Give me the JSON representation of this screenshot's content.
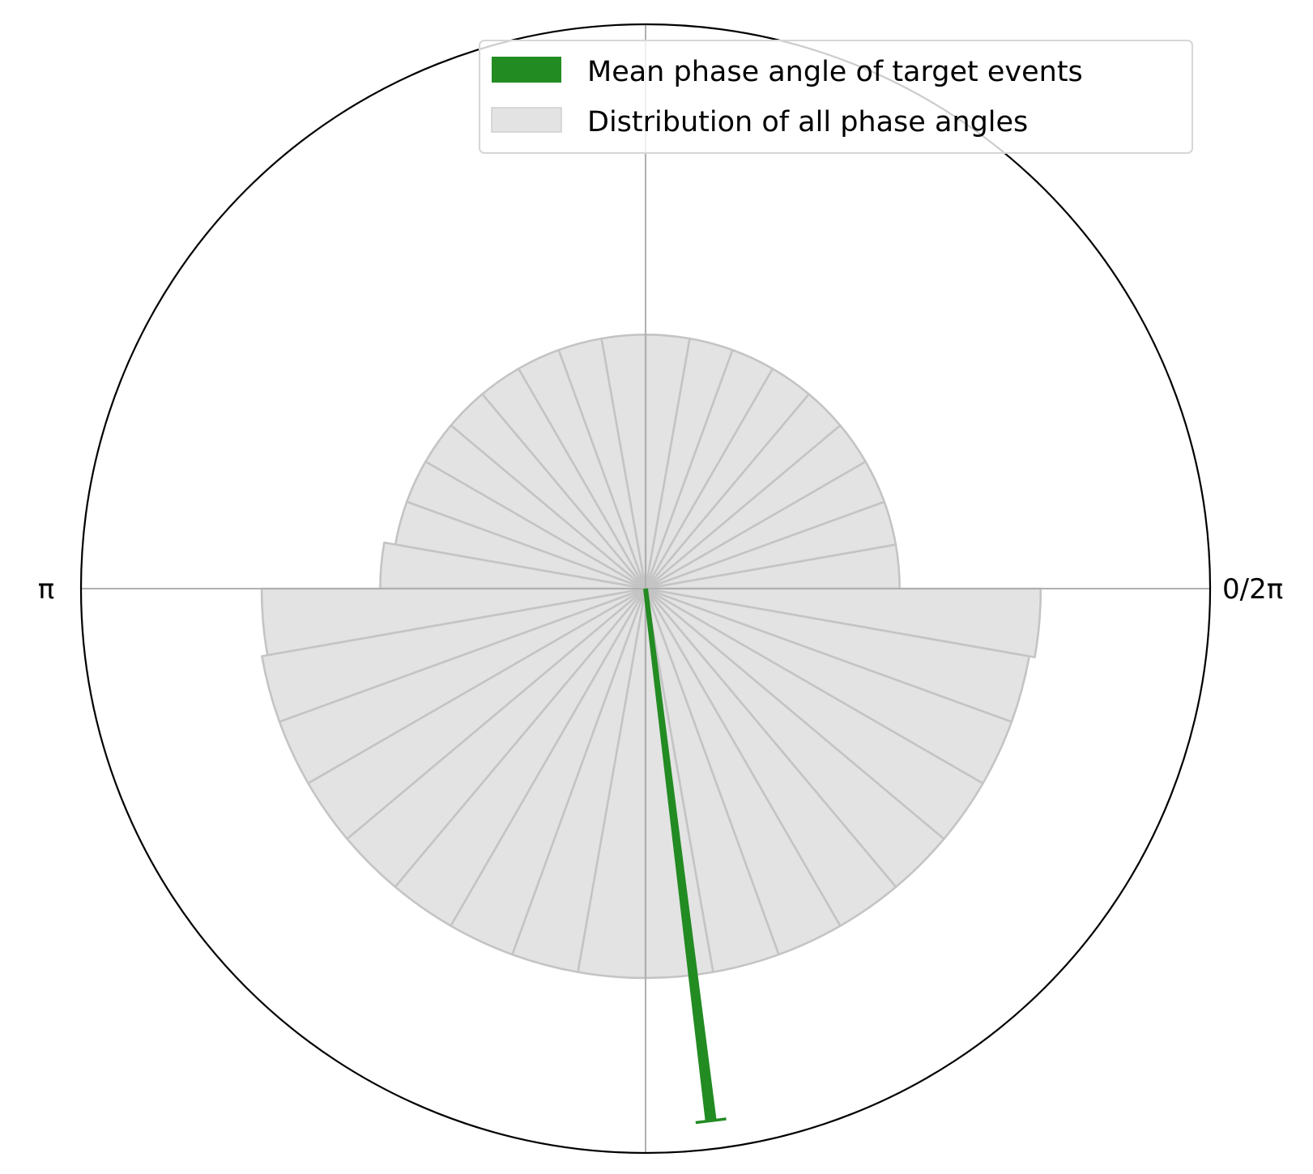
{
  "chart_data": {
    "type": "polar-bar",
    "angle_tick_labels": [
      {
        "angle_rad": 0,
        "label": "0/2π"
      },
      {
        "angle_rad": 3.14159265,
        "label": "π"
      }
    ],
    "grid": true,
    "rlim": [
      0,
      1.0
    ],
    "legend": {
      "placement": "top-right",
      "entries": [
        {
          "label": "Mean phase angle of target events",
          "color": "#228b22"
        },
        {
          "label": "Distribution of all phase angles",
          "color": "#e3e3e3"
        }
      ]
    },
    "histogram": {
      "name": "Distribution of all phase angles",
      "bin_width_deg": 10,
      "bin_centers_deg": [
        5,
        15,
        25,
        35,
        45,
        55,
        65,
        75,
        85,
        95,
        105,
        115,
        125,
        135,
        145,
        155,
        165,
        175,
        185,
        195,
        205,
        215,
        225,
        235,
        245,
        255,
        265,
        275,
        285,
        295,
        305,
        315,
        325,
        335,
        345,
        355
      ],
      "values": [
        0.45,
        0.45,
        0.45,
        0.45,
        0.45,
        0.45,
        0.45,
        0.45,
        0.45,
        0.45,
        0.45,
        0.45,
        0.45,
        0.45,
        0.45,
        0.45,
        0.45,
        0.47,
        0.68,
        0.69,
        0.69,
        0.69,
        0.69,
        0.69,
        0.69,
        0.69,
        0.69,
        0.69,
        0.69,
        0.69,
        0.69,
        0.69,
        0.69,
        0.69,
        0.69,
        0.7
      ],
      "fill": "#e3e3e3",
      "edge": "#c4c4c4"
    },
    "mean_vector": {
      "name": "Mean phase angle of target events",
      "angle_deg": 277,
      "length": 0.95,
      "color": "#228b22"
    }
  }
}
